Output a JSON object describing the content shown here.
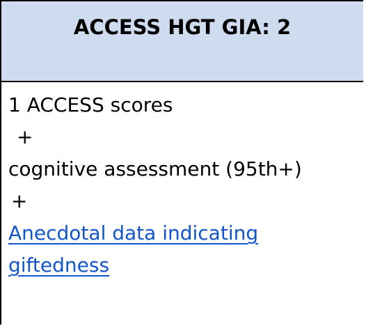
{
  "card": {
    "title": "ACCESS HGT GIA: 2",
    "lines": {
      "scores": "1 ACCESS scores",
      "plus1": "+",
      "assessment": "cognitive assessment (95th+)",
      "plus2": "+"
    },
    "link_text": "Anecdotal data indicating giftedness"
  },
  "colors": {
    "header_bg": "#cfdcf0",
    "link": "#1155cc"
  }
}
